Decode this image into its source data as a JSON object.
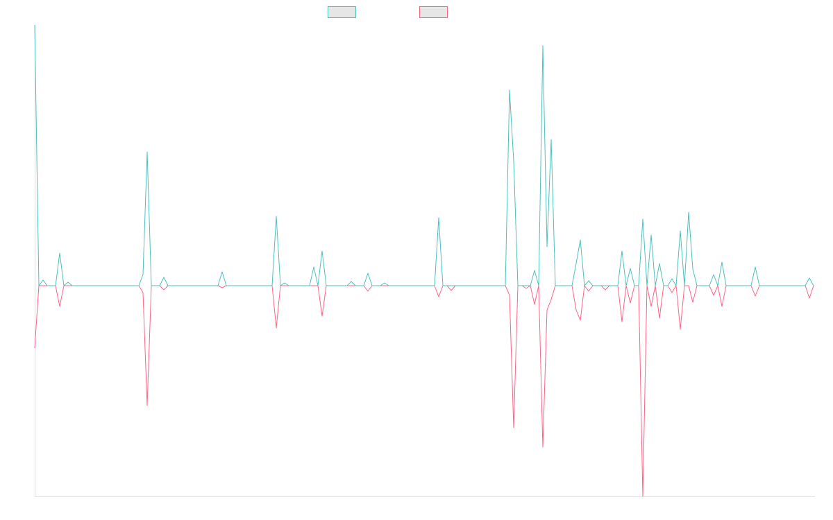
{
  "chart_data": {
    "type": "line",
    "series": [
      {
        "color": "#4bc0c0",
        "values": [
          376,
          0,
          8,
          0,
          0,
          0,
          47,
          0,
          5,
          0,
          0,
          0,
          0,
          0,
          0,
          0,
          0,
          0,
          0,
          0,
          0,
          0,
          0,
          0,
          0,
          0,
          16,
          193,
          0,
          0,
          0,
          12,
          0,
          0,
          0,
          0,
          0,
          0,
          0,
          0,
          0,
          0,
          0,
          0,
          0,
          20,
          0,
          0,
          0,
          0,
          0,
          0,
          0,
          0,
          0,
          0,
          0,
          0,
          100,
          0,
          4,
          0,
          0,
          0,
          0,
          0,
          0,
          27,
          0,
          50,
          0,
          0,
          0,
          0,
          0,
          0,
          6,
          0,
          0,
          0,
          18,
          0,
          0,
          0,
          4,
          0,
          0,
          0,
          0,
          0,
          0,
          0,
          0,
          0,
          0,
          0,
          0,
          98,
          0,
          0,
          0,
          0,
          0,
          0,
          0,
          0,
          0,
          0,
          0,
          0,
          0,
          0,
          0,
          0,
          282,
          180,
          0,
          0,
          0,
          0,
          22,
          0,
          346,
          56,
          211,
          0,
          0,
          0,
          0,
          0,
          32,
          66,
          0,
          7,
          0,
          0,
          0,
          0,
          0,
          0,
          0,
          50,
          0,
          25,
          0,
          0,
          96,
          0,
          73,
          0,
          32,
          0,
          0,
          10,
          0,
          79,
          0,
          106,
          24,
          0,
          0,
          0,
          0,
          16,
          0,
          34,
          0,
          0,
          0,
          0,
          0,
          0,
          0,
          27,
          0,
          0,
          0,
          0,
          0,
          0,
          0,
          0,
          0,
          0,
          0,
          0,
          11,
          0
        ]
      },
      {
        "color": "#ff6384",
        "values": [
          -90,
          0,
          0,
          0,
          0,
          0,
          -30,
          0,
          0,
          0,
          0,
          0,
          0,
          0,
          0,
          0,
          0,
          0,
          0,
          0,
          0,
          0,
          0,
          0,
          0,
          0,
          -10,
          -173,
          0,
          0,
          0,
          -6,
          0,
          0,
          0,
          0,
          0,
          0,
          0,
          0,
          0,
          0,
          0,
          0,
          0,
          -3,
          0,
          0,
          0,
          0,
          0,
          0,
          0,
          0,
          0,
          0,
          0,
          0,
          -61,
          0,
          0,
          0,
          0,
          0,
          0,
          0,
          0,
          0,
          0,
          -44,
          0,
          0,
          0,
          0,
          0,
          0,
          0,
          0,
          0,
          0,
          -8,
          0,
          0,
          0,
          0,
          0,
          0,
          0,
          0,
          0,
          0,
          0,
          0,
          0,
          0,
          0,
          0,
          -16,
          0,
          0,
          -7,
          0,
          0,
          0,
          0,
          0,
          0,
          0,
          0,
          0,
          0,
          0,
          0,
          0,
          -14,
          -205,
          0,
          0,
          -4,
          0,
          -27,
          0,
          -233,
          -35,
          -20,
          0,
          0,
          0,
          0,
          0,
          -35,
          -50,
          0,
          -8,
          0,
          0,
          0,
          -6,
          0,
          0,
          0,
          -52,
          0,
          -25,
          0,
          0,
          -304,
          0,
          -30,
          0,
          -47,
          0,
          0,
          -10,
          0,
          -63,
          0,
          0,
          -24,
          0,
          0,
          0,
          0,
          -14,
          0,
          -30,
          0,
          0,
          0,
          0,
          0,
          0,
          0,
          -15,
          0,
          0,
          0,
          0,
          0,
          0,
          0,
          0,
          0,
          0,
          0,
          0,
          -18,
          0
        ]
      }
    ],
    "ylim": [
      -304,
      376
    ]
  }
}
